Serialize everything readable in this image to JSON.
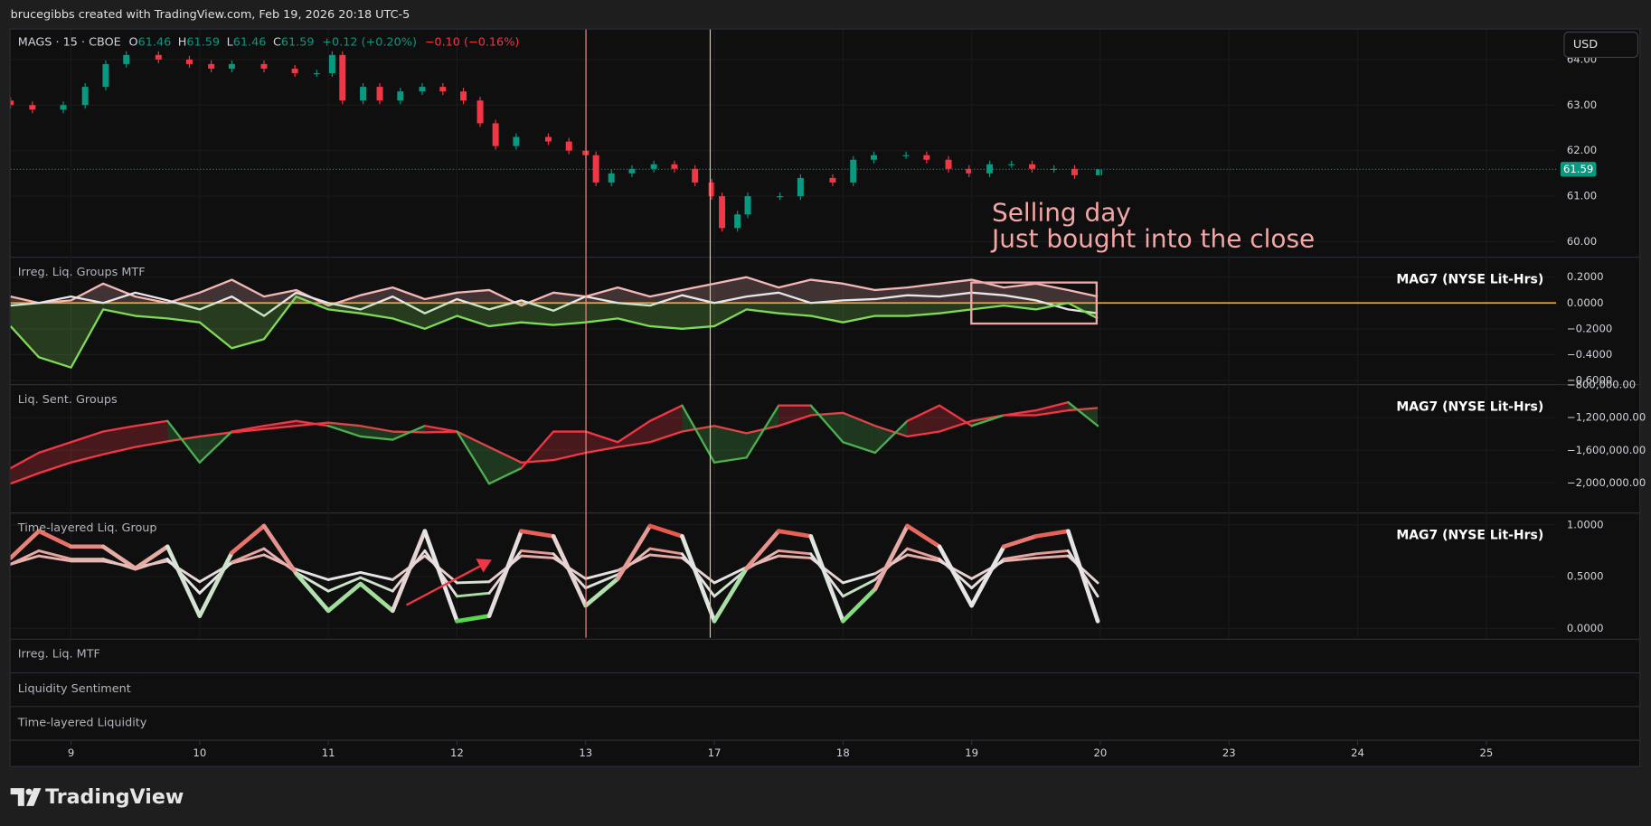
{
  "header": {
    "text": "brucegibbs created with TradingView.com, Feb 19, 2026 20:18 UTC-5"
  },
  "currency": "USD",
  "footer": {
    "brand": "TradingView"
  },
  "collapsed_panes": [
    "Irreg. Liq. MTF",
    "Liquidity Sentiment",
    "Time-layered Liquidity"
  ],
  "chart_data": [
    {
      "type": "candlestick",
      "title": "MAGS · 15 · CBOE",
      "legend": {
        "labels": [
          "O",
          "H",
          "L",
          "C"
        ],
        "change": "+0.12 (+0.20%)",
        "session_change": "−0.10 (−0.16%)"
      },
      "annotation": [
        "Selling day",
        "Just bought into the close"
      ],
      "up_color": "#089981",
      "down_color": "#f23645",
      "grid": true,
      "x": [
        -0.47,
        -0.3,
        -0.06,
        0.11,
        0.27,
        0.43,
        0.68,
        0.92,
        1.09,
        1.25,
        1.5,
        1.74,
        1.91,
        2.03,
        2.11,
        2.27,
        2.4,
        2.56,
        2.73,
        2.89,
        3.05,
        3.18,
        3.3,
        3.46,
        3.71,
        3.87,
        4.0,
        4.08,
        4.2,
        4.36,
        4.53,
        4.69,
        4.85,
        4.98,
        5.06,
        5.18,
        5.26,
        5.51,
        5.67,
        5.92,
        6.08,
        6.24,
        6.49,
        6.65,
        6.82,
        6.98,
        7.14,
        7.31,
        7.47,
        7.64,
        7.8,
        7.99
      ],
      "open": [
        63.1,
        63.0,
        62.9,
        63.0,
        63.4,
        63.9,
        64.1,
        64.0,
        63.9,
        63.8,
        63.9,
        63.8,
        63.7,
        63.7,
        64.1,
        63.1,
        63.4,
        63.1,
        63.3,
        63.4,
        63.3,
        63.1,
        62.6,
        62.1,
        62.3,
        62.2,
        62.0,
        61.9,
        61.3,
        61.5,
        61.6,
        61.7,
        61.6,
        61.3,
        61.0,
        60.3,
        60.6,
        61.0,
        61.0,
        61.4,
        61.3,
        61.8,
        61.9,
        61.9,
        61.8,
        61.6,
        61.5,
        61.7,
        61.7,
        61.6,
        61.6,
        61.46
      ],
      "high": [
        63.18,
        63.08,
        63.08,
        63.48,
        63.98,
        64.18,
        64.18,
        64.08,
        63.98,
        63.98,
        63.98,
        63.88,
        63.78,
        64.18,
        64.18,
        63.48,
        63.48,
        63.38,
        63.48,
        63.48,
        63.38,
        63.18,
        62.68,
        62.38,
        62.38,
        62.28,
        62.08,
        61.98,
        61.58,
        61.68,
        61.78,
        61.78,
        61.68,
        61.38,
        61.08,
        60.68,
        61.08,
        61.08,
        61.48,
        61.48,
        61.88,
        61.98,
        61.98,
        61.98,
        61.88,
        61.68,
        61.78,
        61.78,
        61.78,
        61.68,
        61.68,
        61.59
      ],
      "low": [
        62.92,
        62.82,
        62.82,
        62.92,
        63.32,
        63.82,
        63.92,
        63.82,
        63.72,
        63.72,
        63.72,
        63.62,
        63.62,
        63.62,
        63.02,
        63.02,
        63.02,
        63.02,
        63.22,
        63.22,
        63.02,
        62.52,
        62.02,
        62.02,
        62.12,
        61.92,
        61.82,
        61.22,
        61.22,
        61.42,
        61.52,
        61.52,
        61.22,
        60.92,
        60.22,
        60.22,
        60.52,
        60.92,
        60.92,
        61.22,
        61.22,
        61.72,
        61.82,
        61.72,
        61.52,
        61.42,
        61.42,
        61.62,
        61.52,
        61.52,
        61.38,
        61.46
      ],
      "close": [
        63.0,
        62.9,
        63.0,
        63.4,
        63.9,
        64.1,
        64.0,
        63.9,
        63.8,
        63.9,
        63.8,
        63.7,
        63.7,
        64.1,
        63.1,
        63.4,
        63.1,
        63.3,
        63.4,
        63.3,
        63.1,
        62.6,
        62.1,
        62.3,
        62.2,
        62.0,
        61.9,
        61.3,
        61.5,
        61.6,
        61.7,
        61.6,
        61.3,
        61.0,
        60.3,
        60.6,
        61.0,
        61.0,
        61.4,
        61.3,
        61.8,
        61.9,
        61.9,
        61.8,
        61.6,
        61.5,
        61.7,
        61.7,
        61.6,
        61.6,
        61.46,
        61.59
      ],
      "last_price": 61.59,
      "xlim": [
        -0.47,
        12.19
      ],
      "xticks": [
        {
          "value": 0,
          "label": "9"
        },
        {
          "value": 1,
          "label": "10"
        },
        {
          "value": 2,
          "label": "11"
        },
        {
          "value": 3,
          "label": "12"
        },
        {
          "value": 4,
          "label": "13"
        },
        {
          "value": 5,
          "label": "17"
        },
        {
          "value": 6,
          "label": "18"
        },
        {
          "value": 7,
          "label": "19"
        },
        {
          "value": 8,
          "label": "20"
        },
        {
          "value": 9,
          "label": "23"
        },
        {
          "value": 10,
          "label": "24"
        },
        {
          "value": 11,
          "label": "25"
        }
      ],
      "ylim": [
        59.67,
        64.66
      ],
      "yticks": [
        {
          "value": 60,
          "label": "60.00"
        },
        {
          "value": 61,
          "label": "61.00"
        },
        {
          "value": 62,
          "label": "62.00"
        },
        {
          "value": 63,
          "label": "63.00"
        },
        {
          "value": 64,
          "label": "64.00"
        }
      ]
    },
    {
      "type": "line",
      "title": "Irreg. Liq. Groups MTF",
      "source_label": "MAG7 (NYSE Lit-Hrs)",
      "grid": true,
      "hline": {
        "value": 0,
        "color": "#f0a030"
      },
      "x": [
        -0.47,
        -0.25,
        0,
        0.25,
        0.5,
        0.75,
        1,
        1.25,
        1.5,
        1.75,
        2,
        2.25,
        2.5,
        2.75,
        3,
        3.25,
        3.5,
        3.75,
        4,
        4.25,
        4.5,
        4.75,
        5,
        5.25,
        5.5,
        5.75,
        6,
        6.25,
        6.5,
        6.75,
        7,
        7.25,
        7.5,
        7.75,
        7.98
      ],
      "series": [
        {
          "color": "#f4b6b6",
          "fill": true,
          "values": [
            0.05,
            0.0,
            0.02,
            0.15,
            0.05,
            0.0,
            0.08,
            0.18,
            0.05,
            0.1,
            -0.02,
            0.06,
            0.12,
            0.03,
            0.08,
            0.1,
            -0.02,
            0.08,
            0.05,
            0.12,
            0.05,
            0.1,
            0.15,
            0.2,
            0.12,
            0.18,
            0.15,
            0.1,
            0.12,
            0.15,
            0.18,
            0.12,
            0.15,
            0.1,
            0.05
          ]
        },
        {
          "color": "#e6e6e6",
          "values": [
            -0.02,
            0.0,
            0.05,
            0.0,
            0.08,
            0.02,
            -0.05,
            0.05,
            -0.1,
            0.08,
            0.0,
            -0.05,
            0.05,
            -0.08,
            0.03,
            -0.05,
            0.02,
            -0.06,
            0.05,
            0.0,
            -0.02,
            0.06,
            0.0,
            0.05,
            0.08,
            0.0,
            0.02,
            0.03,
            0.06,
            0.05,
            0.08,
            0.06,
            0.02,
            -0.05,
            -0.08
          ]
        },
        {
          "color": "#7ed957",
          "fill": true,
          "values": [
            -0.18,
            -0.42,
            -0.5,
            -0.05,
            -0.1,
            -0.12,
            -0.15,
            -0.35,
            -0.28,
            0.05,
            -0.05,
            -0.08,
            -0.12,
            -0.2,
            -0.1,
            -0.18,
            -0.15,
            -0.17,
            -0.15,
            -0.12,
            -0.18,
            -0.2,
            -0.18,
            -0.05,
            -0.08,
            -0.1,
            -0.15,
            -0.1,
            -0.1,
            -0.08,
            -0.05,
            -0.02,
            -0.05,
            0.0,
            -0.12
          ]
        }
      ],
      "xlim": [
        -0.47,
        12.19
      ],
      "ylim": [
        -0.62,
        0.35
      ],
      "yticks": [
        {
          "value": 0.2,
          "label": "0.2000"
        },
        {
          "value": 0,
          "label": "0.0000"
        },
        {
          "value": -0.2,
          "label": "−0.2000"
        },
        {
          "value": -0.4,
          "label": "−0.4000"
        },
        {
          "value": -0.6,
          "label": "−0.6000"
        }
      ]
    },
    {
      "type": "line",
      "title": "Liq. Sent. Groups",
      "source_label": "MAG7 (NYSE Lit-Hrs)",
      "grid": true,
      "x": [
        -0.47,
        -0.25,
        0,
        0.25,
        0.5,
        0.75,
        1,
        1.25,
        1.5,
        1.75,
        2,
        2.25,
        2.5,
        2.75,
        3,
        3.25,
        3.5,
        3.75,
        4,
        4.25,
        4.5,
        4.75,
        5,
        5.25,
        5.5,
        5.75,
        6,
        6.25,
        6.5,
        6.75,
        7,
        7.25,
        7.5,
        7.75,
        7.98
      ],
      "series": [
        {
          "color": "#f23645",
          "values": [
            -2010000,
            -1880000,
            -1750000,
            -1650000,
            -1560000,
            -1490000,
            -1430000,
            -1380000,
            -1340000,
            -1300000,
            -1260000,
            -1300000,
            -1370000,
            -1380000,
            -1370000,
            -1560000,
            -1750000,
            -1720000,
            -1630000,
            -1560000,
            -1500000,
            -1370000,
            -1300000,
            -1390000,
            -1300000,
            -1170000,
            -1140000,
            -1300000,
            -1430000,
            -1370000,
            -1240000,
            -1170000,
            -1170000,
            -1110000,
            -1080000
          ]
        },
        {
          "color_above": "#f23645",
          "color_below": "#4caf50",
          "values": [
            -1820000,
            -1630000,
            -1500000,
            -1370000,
            -1300000,
            -1240000,
            -1750000,
            -1370000,
            -1300000,
            -1240000,
            -1300000,
            -1430000,
            -1470000,
            -1300000,
            -1370000,
            -2010000,
            -1820000,
            -1370000,
            -1370000,
            -1500000,
            -1240000,
            -1050000,
            -1750000,
            -1690000,
            -1050000,
            -1050000,
            -1500000,
            -1630000,
            -1240000,
            -1050000,
            -1300000,
            -1170000,
            -1110000,
            -1010000,
            -1300000
          ]
        }
      ],
      "xlim": [
        -0.47,
        12.19
      ],
      "ylim": [
        -2350000,
        -800000
      ],
      "yticks": [
        {
          "value": -800000,
          "label": "−800,000.00"
        },
        {
          "value": -1200000,
          "label": "−1,200,000.00"
        },
        {
          "value": -1600000,
          "label": "−1,600,000.00"
        },
        {
          "value": -2000000,
          "label": "−2,000,000.00"
        }
      ]
    },
    {
      "type": "line",
      "title": "Time-layered Liq. Group",
      "source_label": "MAG7 (NYSE Lit-Hrs)",
      "grid": true,
      "color_scale": [
        "#39d12b",
        "#e6e6e6",
        "#e8463a"
      ],
      "x": [
        -0.47,
        -0.25,
        0,
        0.25,
        0.5,
        0.75,
        1,
        1.25,
        1.5,
        1.75,
        2,
        2.25,
        2.5,
        2.75,
        3,
        3.25,
        3.5,
        3.75,
        4,
        4.25,
        4.5,
        4.75,
        5,
        5.25,
        5.5,
        5.75,
        6,
        6.25,
        6.5,
        6.75,
        7,
        7.25,
        7.5,
        7.75,
        7.98
      ],
      "series": [
        {
          "values": [
            0.68,
            0.94,
            0.79,
            0.79,
            0.58,
            0.79,
            0.12,
            0.73,
            0.99,
            0.53,
            0.17,
            0.43,
            0.17,
            0.94,
            0.07,
            0.12,
            0.94,
            0.89,
            0.22,
            0.48,
            0.99,
            0.89,
            0.07,
            0.58,
            0.94,
            0.89,
            0.07,
            0.38,
            0.99,
            0.79,
            0.22,
            0.79,
            0.89,
            0.94,
            0.07
          ]
        },
        {
          "values": [
            0.62,
            0.75,
            0.67,
            0.67,
            0.57,
            0.67,
            0.34,
            0.64,
            0.77,
            0.54,
            0.36,
            0.49,
            0.36,
            0.75,
            0.31,
            0.34,
            0.75,
            0.72,
            0.39,
            0.52,
            0.77,
            0.72,
            0.31,
            0.57,
            0.75,
            0.72,
            0.31,
            0.47,
            0.77,
            0.67,
            0.39,
            0.67,
            0.72,
            0.75,
            0.31
          ]
        },
        {
          "values": [
            0.62,
            0.7,
            0.65,
            0.65,
            0.59,
            0.65,
            0.45,
            0.63,
            0.71,
            0.57,
            0.47,
            0.54,
            0.47,
            0.7,
            0.44,
            0.45,
            0.7,
            0.68,
            0.48,
            0.56,
            0.71,
            0.68,
            0.44,
            0.59,
            0.7,
            0.68,
            0.44,
            0.53,
            0.71,
            0.65,
            0.48,
            0.65,
            0.68,
            0.7,
            0.44
          ]
        }
      ],
      "xlim": [
        -0.47,
        12.19
      ],
      "ylim": [
        -0.09,
        1.11
      ],
      "yticks": [
        {
          "value": 1,
          "label": "1.0000"
        },
        {
          "value": 0.5,
          "label": "0.5000"
        },
        {
          "value": 0,
          "label": "0.0000"
        }
      ]
    }
  ]
}
